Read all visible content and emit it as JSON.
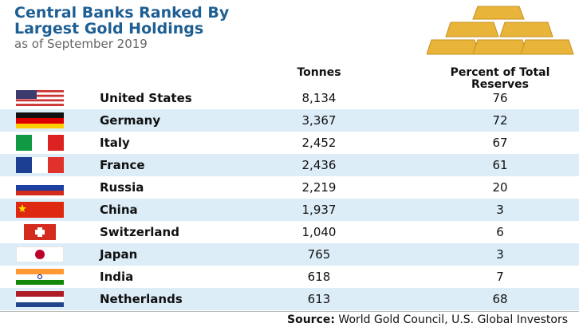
{
  "header": {
    "title": [
      "Central Banks Ranked By",
      "Largest Gold Holdings"
    ],
    "subtitle": "as of September 2019"
  },
  "table": {
    "columns": [
      "Tonnes",
      "Percent of Total Reserves"
    ],
    "rows": [
      [
        "United States",
        "8,134",
        "76"
      ],
      [
        "Germany",
        "3,367",
        "72"
      ],
      [
        "Italy",
        "2,452",
        "67"
      ],
      [
        "France",
        "2,436",
        "61"
      ],
      [
        "Russia",
        "2,219",
        "20"
      ],
      [
        "China",
        "1,937",
        "3"
      ],
      [
        "Switzerland",
        "1,040",
        "6"
      ],
      [
        "Japan",
        "765",
        "3"
      ],
      [
        "India",
        "618",
        "7"
      ],
      [
        "Netherlands",
        "613",
        "68"
      ]
    ]
  },
  "source": {
    "label": "Source:",
    "text": "World Gold Council, U.S. Global Investors"
  }
}
